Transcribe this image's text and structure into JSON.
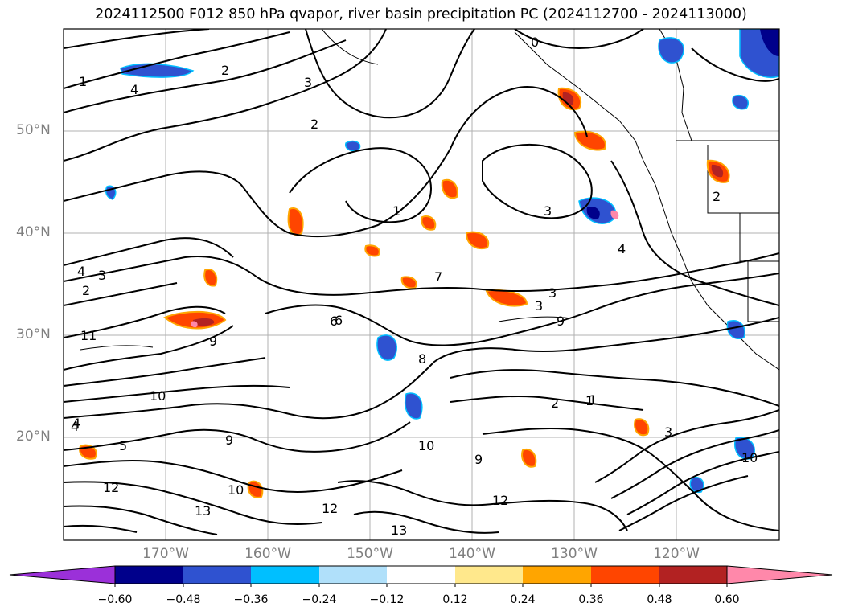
{
  "title": "2024112500 F012 850 hPa qvapor, river basin precipitation PC (2024112700 - 2024113000)",
  "map": {
    "lat_labels": [
      "50°N",
      "40°N",
      "30°N",
      "20°N"
    ],
    "lon_labels": [
      "170°W",
      "160°W",
      "150°W",
      "140°W",
      "130°W",
      "120°W"
    ],
    "contour_labels": [
      "1",
      "2",
      "3",
      "4",
      "3",
      "2",
      "3",
      "1",
      "2",
      "3",
      "4",
      "3",
      "4",
      "5",
      "6",
      "7",
      "8",
      "9",
      "10",
      "11",
      "12",
      "13",
      "9",
      "6",
      "4",
      "2",
      "1",
      "0",
      "10",
      "12",
      "13",
      "12",
      "10",
      "9",
      "2",
      "1",
      "3",
      "4",
      "9",
      "10"
    ]
  },
  "colorbar": {
    "tick_labels": [
      "−0.60",
      "−0.48",
      "−0.36",
      "−0.24",
      "−0.12",
      "0.12",
      "0.24",
      "0.36",
      "0.48",
      "0.60"
    ],
    "colors": [
      "#9b30d9",
      "#00008b",
      "#2f52d0",
      "#00bfff",
      "#b0e0fa",
      "#ffffff",
      "#ffe88c",
      "#ffa500",
      "#ff4500",
      "#b22222",
      "#ff88aa"
    ]
  }
}
